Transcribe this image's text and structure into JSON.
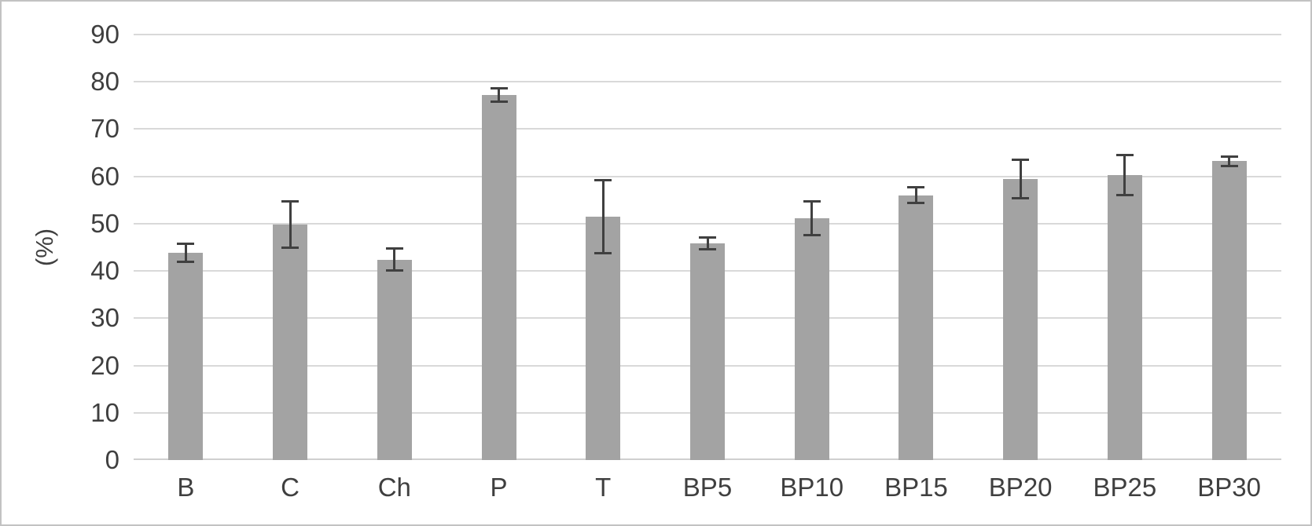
{
  "chart_data": {
    "type": "bar",
    "title": "",
    "xlabel": "",
    "ylabel": "(%)",
    "categories": [
      "B",
      "C",
      "Ch",
      "P",
      "T",
      "BP5",
      "BP10",
      "BP15",
      "BP20",
      "BP25",
      "BP30"
    ],
    "series": [
      {
        "name": "",
        "values": [
          43.8,
          49.8,
          42.4,
          77.2,
          51.5,
          45.9,
          51.2,
          56.0,
          59.5,
          60.3,
          63.2
        ],
        "error_bars": [
          2.2,
          5.1,
          2.6,
          1.6,
          8.0,
          1.5,
          3.8,
          1.9,
          4.3,
          4.5,
          1.2
        ]
      }
    ],
    "ylim": [
      0,
      90
    ],
    "yticks": [
      0,
      10,
      20,
      30,
      40,
      50,
      60,
      70,
      80,
      90
    ],
    "grid": "horizontal",
    "legend": "none",
    "error_bar_style": "symmetric-with-caps"
  },
  "colors": {
    "bar_fill": "#a3a3a3",
    "gridline": "#d9d9d9",
    "axis_line": "#cfcfcf",
    "error_bar": "#404040",
    "tick_text": "#3f3f3f",
    "chart_border": "#c2c2c2",
    "background": "#ffffff"
  }
}
